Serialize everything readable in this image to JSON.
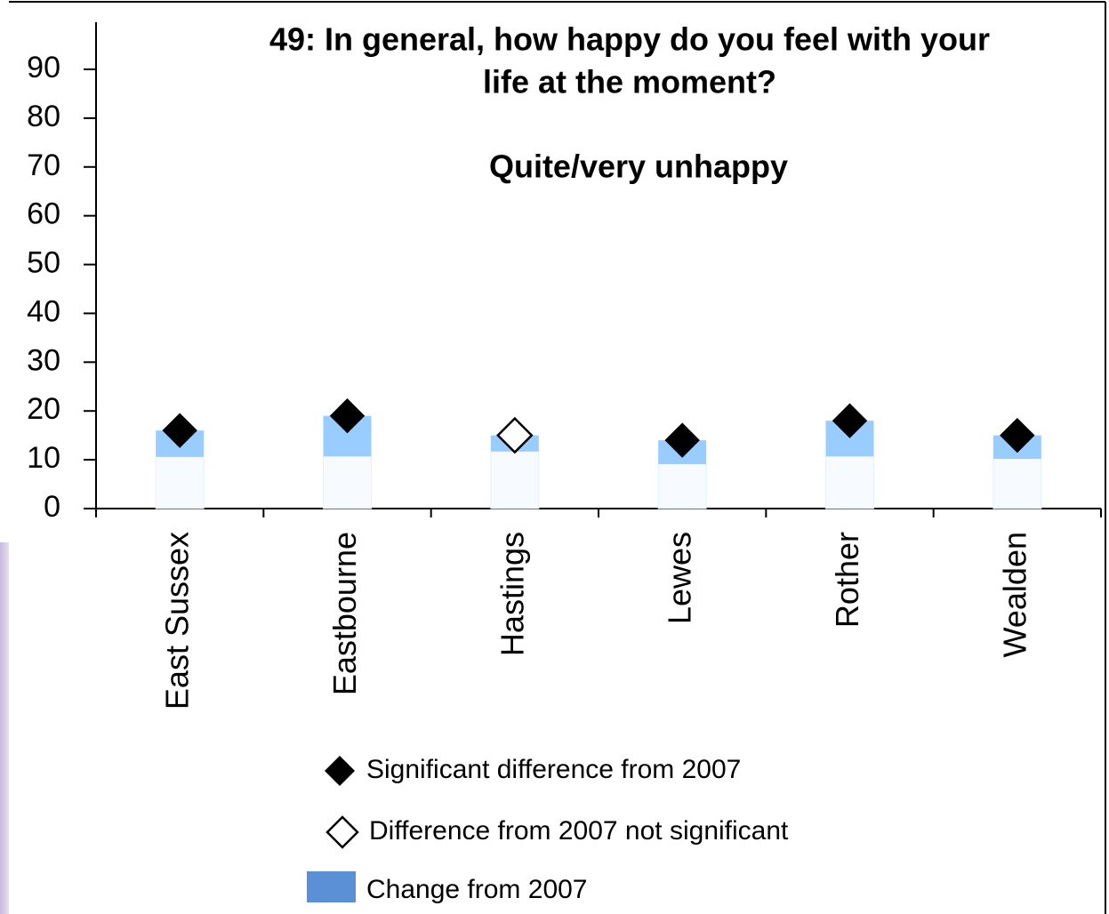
{
  "chart_data": {
    "type": "floating_bar",
    "title": [
      "49: In general, how happy do you feel with your",
      "life at the moment?"
    ],
    "subtitle": "Quite/very unhappy",
    "categories": [
      "East Sussex",
      "Eastbourne",
      "Hastings",
      "Lewes",
      "Rother",
      "Wealden"
    ],
    "values": [
      16,
      19,
      15,
      14,
      18,
      15
    ],
    "previous": [
      10.6,
      10.7,
      11.7,
      9.1,
      10.7,
      10.2
    ],
    "significant": [
      true,
      true,
      false,
      true,
      true,
      true
    ],
    "bar_color": "#99ccff",
    "legend_bar_color": "#5b8fd6",
    "legend": [
      "Significant difference from 2007",
      "Difference from 2007 not significant",
      "Change from 2007"
    ],
    "ylim": [
      0,
      90
    ],
    "yticks": [
      0,
      10,
      20,
      30,
      40,
      50,
      60,
      70,
      80,
      90
    ]
  }
}
